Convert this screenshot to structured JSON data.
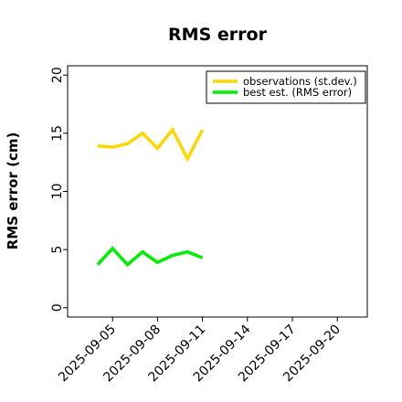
{
  "chart_data": {
    "type": "line",
    "title": "RMS error",
    "ylabel": "RMS error (cm)",
    "xlabel": "",
    "ylim": [
      -0.8,
      20.8
    ],
    "xlim": [
      "2025-09-02",
      "2025-09-22"
    ],
    "yticks": [
      0,
      5,
      10,
      15,
      20
    ],
    "xticks": [
      "2025-09-05",
      "2025-09-08",
      "2025-09-11",
      "2025-09-14",
      "2025-09-17",
      "2025-09-20"
    ],
    "highlight_tick": "2025-09-11",
    "highlight_color": "#228B22",
    "grid": false,
    "legend_position": "top-right",
    "x": [
      "2025-09-04",
      "2025-09-05",
      "2025-09-06",
      "2025-09-07",
      "2025-09-08",
      "2025-09-09",
      "2025-09-10",
      "2025-09-11"
    ],
    "series": [
      {
        "name": "observations (st.dev.)",
        "color": "#FFD700",
        "values": [
          13.9,
          13.8,
          14.1,
          15.0,
          13.7,
          15.3,
          12.8,
          15.3
        ]
      },
      {
        "name": "best est. (RMS error)",
        "color": "#00EE00",
        "values": [
          3.7,
          5.1,
          3.7,
          4.8,
          3.9,
          4.5,
          4.8,
          4.3
        ]
      }
    ]
  }
}
